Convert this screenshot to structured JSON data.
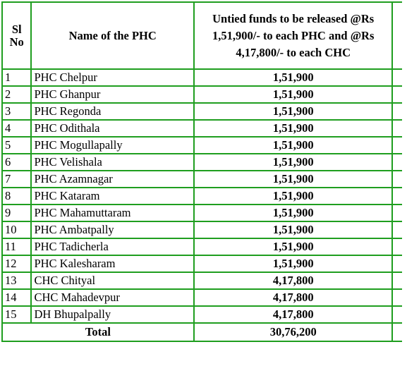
{
  "header": {
    "sl_no": "Sl No",
    "name_of_phc": "Name of the PHC",
    "funds": "Untied funds to be released @Rs 1,51,900/- to each PHC  and @Rs 4,17,800/- to each CHC"
  },
  "rows": [
    {
      "sl": "1",
      "name": "PHC Chelpur",
      "amount": "1,51,900"
    },
    {
      "sl": "2",
      "name": "PHC Ghanpur",
      "amount": "1,51,900"
    },
    {
      "sl": "3",
      "name": "PHC Regonda",
      "amount": "1,51,900"
    },
    {
      "sl": "4",
      "name": "PHC Odithala",
      "amount": "1,51,900"
    },
    {
      "sl": "5",
      "name": "PHC Mogullapally",
      "amount": "1,51,900"
    },
    {
      "sl": "6",
      "name": "PHC Velishala",
      "amount": "1,51,900"
    },
    {
      "sl": "7",
      "name": "PHC Azamnagar",
      "amount": "1,51,900"
    },
    {
      "sl": "8",
      "name": "PHC Kataram",
      "amount": "1,51,900"
    },
    {
      "sl": "9",
      "name": "PHC Mahamuttaram",
      "amount": "1,51,900"
    },
    {
      "sl": "10",
      "name": "PHC Ambatpally",
      "amount": "1,51,900"
    },
    {
      "sl": "11",
      "name": "PHC Tadicherla",
      "amount": "1,51,900"
    },
    {
      "sl": "12",
      "name": "PHC Kalesharam",
      "amount": "1,51,900"
    },
    {
      "sl": "13",
      "name": "CHC Chityal",
      "amount": "4,17,800"
    },
    {
      "sl": "14",
      "name": "CHC Mahadevpur",
      "amount": "4,17,800"
    },
    {
      "sl": "15",
      "name": "DH Bhupalpally",
      "amount": "4,17,800"
    }
  ],
  "total": {
    "label": "Total",
    "amount": "30,76,200"
  },
  "colors": {
    "border": "#1f9e1f",
    "text": "#000000",
    "background": "#ffffff"
  }
}
